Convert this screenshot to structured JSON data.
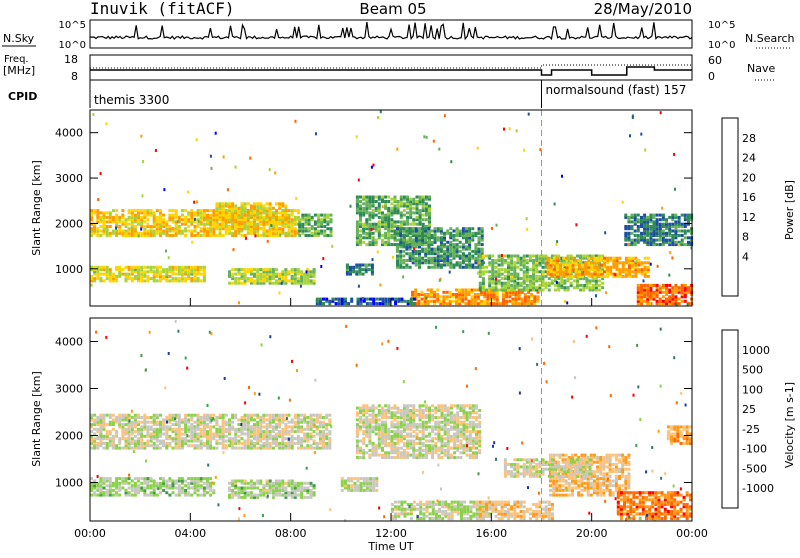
{
  "header": {
    "station": "Inuvik (fitACF)",
    "beam": "Beam 05",
    "date": "28/May/2010"
  },
  "nsky_panel": {
    "left_label": "N.Sky",
    "left_ticks": [
      "10^5",
      "10^0"
    ],
    "right_label": "N.Search",
    "right_ticks": [
      "10^5",
      "10^0"
    ]
  },
  "freq_panel": {
    "left_label_1": "Freq.",
    "left_label_2": "[MHz]",
    "left_ticks": [
      "18",
      "8"
    ],
    "right_label": "Nave",
    "right_ticks": [
      "60",
      "0"
    ],
    "cpid_label": "CPID"
  },
  "cpid_segments": [
    {
      "name": "themis",
      "id": "3300",
      "start_hour": 0,
      "end_hour": 18
    },
    {
      "name": "normalsound (fast)",
      "id": "157",
      "start_hour": 18,
      "end_hour": 24
    }
  ],
  "power_panel": {
    "ylabel": "Slant Range [km]",
    "colorbar_label": "Power [dB]",
    "colorbar_ticks": [
      "28",
      "24",
      "20",
      "16",
      "12",
      "8",
      "4"
    ],
    "colors": [
      "#0000ff",
      "#1d4ea6",
      "#2e8b57",
      "#66b25b",
      "#a8d43a",
      "#ffd400",
      "#ff9c00",
      "#ff6400",
      "#ff0000"
    ]
  },
  "velocity_panel": {
    "ylabel": "Slant Range [km]",
    "colorbar_label": "Velocity [m s-1]",
    "colorbar_ticks": [
      "1000",
      "500",
      "100",
      "25",
      "-25",
      "-100",
      "-500",
      "-1000"
    ],
    "colors": [
      "#1d3aa0",
      "#2f7a6a",
      "#3f9c4a",
      "#8ad24a",
      "#c8c8c0",
      "#ffc27a",
      "#ff9a1a",
      "#ff6a00",
      "#ff0000"
    ]
  },
  "x_axis": {
    "label": "Time UT",
    "ticks": [
      "00:00",
      "04:00",
      "08:00",
      "12:00",
      "16:00",
      "20:00",
      "00:00"
    ]
  },
  "chart_data": {
    "type": "heatmap",
    "x": {
      "label": "Time UT",
      "unit": "hour",
      "range": [
        0,
        24
      ],
      "ticks": [
        "00:00",
        "04:00",
        "08:00",
        "12:00",
        "16:00",
        "20:00",
        "00:00"
      ]
    },
    "y": {
      "label": "Slant Range [km]",
      "unit": "km",
      "range": [
        180,
        4500
      ],
      "ticks": [
        1000,
        2000,
        3000,
        4000
      ]
    },
    "mode_change_hour": 18,
    "power": {
      "unit": "dB",
      "range": [
        0,
        32
      ],
      "regions": [
        {
          "t0": 0.0,
          "t1": 8.3,
          "r0": 1700,
          "r1": 2300,
          "level": 20
        },
        {
          "t0": 0.0,
          "t1": 4.6,
          "r0": 700,
          "r1": 1050,
          "level": 18
        },
        {
          "t0": 5.5,
          "t1": 8.9,
          "r0": 650,
          "r1": 1000,
          "level": 16
        },
        {
          "t0": 5.0,
          "t1": 7.8,
          "r0": 1850,
          "r1": 2450,
          "level": 20
        },
        {
          "t0": 8.3,
          "t1": 9.6,
          "r0": 1700,
          "r1": 2200,
          "level": 12
        },
        {
          "t0": 10.2,
          "t1": 11.3,
          "r0": 850,
          "r1": 1100,
          "level": 8
        },
        {
          "t0": 10.6,
          "t1": 13.6,
          "r0": 1500,
          "r1": 2600,
          "level": 12
        },
        {
          "t0": 12.2,
          "t1": 15.6,
          "r0": 1000,
          "r1": 1900,
          "level": 10
        },
        {
          "t0": 12.8,
          "t1": 17.9,
          "r0": 200,
          "r1": 550,
          "level": 24
        },
        {
          "t0": 15.5,
          "t1": 20.4,
          "r0": 500,
          "r1": 1300,
          "level": 14
        },
        {
          "t0": 18.2,
          "t1": 22.3,
          "r0": 800,
          "r1": 1250,
          "level": 22
        },
        {
          "t0": 21.8,
          "t1": 24.0,
          "r0": 200,
          "r1": 650,
          "level": 26
        },
        {
          "t0": 21.3,
          "t1": 24.0,
          "r0": 1500,
          "r1": 2200,
          "level": 8
        },
        {
          "t0": 9.0,
          "t1": 13.0,
          "r0": 200,
          "r1": 350,
          "level": 6
        }
      ]
    },
    "velocity": {
      "unit": "m s-1",
      "range": [
        -1000,
        1000
      ],
      "regions": [
        {
          "t0": 0.0,
          "t1": 9.6,
          "r0": 1700,
          "r1": 2450,
          "level": 0
        },
        {
          "t0": 0.0,
          "t1": 5.0,
          "r0": 700,
          "r1": 1100,
          "level": 150
        },
        {
          "t0": 5.5,
          "t1": 9.0,
          "r0": 650,
          "r1": 1050,
          "level": 120
        },
        {
          "t0": 10.0,
          "t1": 11.5,
          "r0": 800,
          "r1": 1100,
          "level": 60
        },
        {
          "t0": 10.6,
          "t1": 15.5,
          "r0": 1500,
          "r1": 2650,
          "level": 0
        },
        {
          "t0": 12.0,
          "t1": 16.0,
          "r0": 200,
          "r1": 600,
          "level": 80
        },
        {
          "t0": 15.5,
          "t1": 18.5,
          "r0": 200,
          "r1": 600,
          "level": -200
        },
        {
          "t0": 18.3,
          "t1": 21.5,
          "r0": 700,
          "r1": 1600,
          "level": -250
        },
        {
          "t0": 21.0,
          "t1": 24.0,
          "r0": 200,
          "r1": 800,
          "level": -600
        },
        {
          "t0": 23.0,
          "t1": 24.0,
          "r0": 1800,
          "r1": 2200,
          "level": -400
        },
        {
          "t0": 16.5,
          "t1": 20.0,
          "r0": 1100,
          "r1": 1500,
          "level": 0
        }
      ]
    }
  }
}
